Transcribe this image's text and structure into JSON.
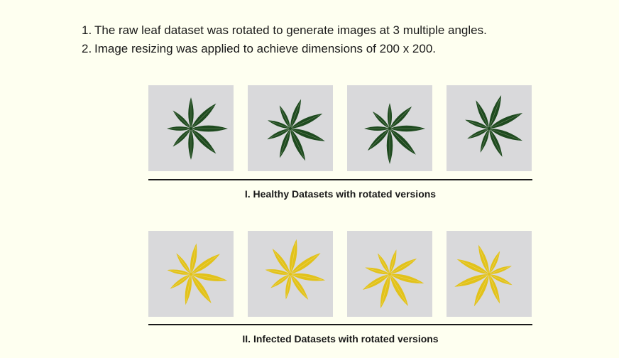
{
  "steps": [
    {
      "num": "1.",
      "text": "The raw leaf dataset was rotated to generate images at 3 multiple angles."
    },
    {
      "num": "2.",
      "text": "Image resizing was applied to achieve dimensions of 200 x 200."
    }
  ],
  "healthy": {
    "caption": "I. Healthy Datasets with rotated versions",
    "leaf_color": "#1e4a1f",
    "images": [
      {
        "rotation_deg": 0
      },
      {
        "rotation_deg": 20
      },
      {
        "rotation_deg": 45
      },
      {
        "rotation_deg": -25
      }
    ]
  },
  "infected": {
    "caption": "II. Infected Datasets with rotated versions",
    "leaf_color": "#e2c21a",
    "images": [
      {
        "rotation_deg": 10
      },
      {
        "rotation_deg": -35
      },
      {
        "rotation_deg": 60
      },
      {
        "rotation_deg": 160
      }
    ]
  },
  "colors": {
    "background": "#fefff0",
    "tile_background": "#d9d9db"
  }
}
